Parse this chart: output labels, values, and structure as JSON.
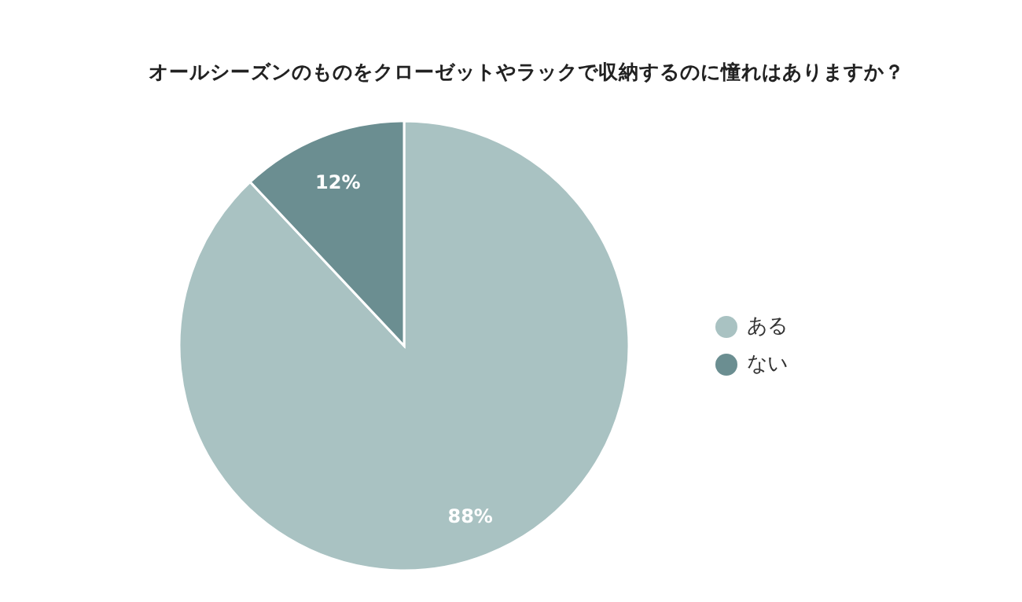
{
  "chart_data": {
    "type": "pie",
    "title": "オールシーズンのものをクローゼットやラックで収納するのに憧れはありますか？",
    "categories": [
      "ある",
      "ない"
    ],
    "values": [
      88,
      12
    ],
    "colors": [
      "#a9c2c2",
      "#6b8e91"
    ],
    "value_labels": [
      "88%",
      "12%"
    ],
    "legend": "right"
  }
}
